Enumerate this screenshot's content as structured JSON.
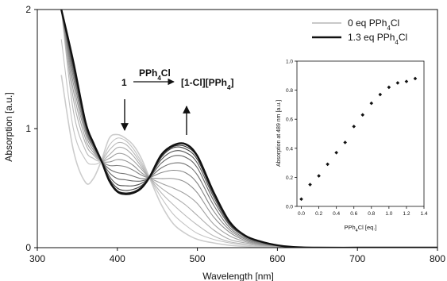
{
  "chart_data": [
    {
      "type": "line",
      "xlabel": "Wavelength [nm]",
      "ylabel": "Absorption [a.u.]",
      "xlim": [
        300,
        800
      ],
      "ylim": [
        0,
        2
      ],
      "xticks": [
        300,
        400,
        500,
        600,
        700,
        800
      ],
      "yticks": [
        0,
        1,
        2
      ],
      "grid": false,
      "legend_position": "top-right",
      "legend": [
        {
          "label_pre": "0 eq PPh",
          "label_sub": "4",
          "label_post": "Cl",
          "color": "#c8c8c8"
        },
        {
          "label_pre": "1.3 eq PPh",
          "label_sub": "4",
          "label_post": "Cl",
          "color": "#111111"
        }
      ],
      "annotations": {
        "reactant": "1",
        "reagent_pre": "PPh",
        "reagent_sub": "4",
        "reagent_post": "Cl",
        "product_pre": "[1-Cl][PPh",
        "product_sub": "4",
        "product_post": "]"
      },
      "isosbestic_points_nm": [
        378,
        440
      ],
      "series": [
        {
          "equivalents": 0.0,
          "color": "#cccccc",
          "x": [
            330,
            345,
            360,
            370,
            380,
            390,
            400,
            410,
            420,
            430,
            440,
            455,
            470,
            485,
            500,
            520,
            540,
            560,
            580,
            600,
            620,
            650,
            700,
            750,
            800
          ],
          "y": [
            1.45,
            0.82,
            0.55,
            0.58,
            0.73,
            0.92,
            0.95,
            0.92,
            0.86,
            0.75,
            0.59,
            0.36,
            0.2,
            0.12,
            0.07,
            0.04,
            0.02,
            0.01,
            0.005,
            0.0,
            0.0,
            0.0,
            0.0,
            0.0,
            0.0
          ]
        },
        {
          "equivalents": 0.1,
          "color": "#c3c3c3",
          "x": [
            330,
            345,
            360,
            370,
            380,
            390,
            400,
            410,
            420,
            430,
            440,
            455,
            470,
            485,
            500,
            520,
            540,
            560,
            580,
            600,
            620,
            650,
            700,
            750,
            800
          ],
          "y": [
            1.75,
            1.0,
            0.74,
            0.7,
            0.73,
            0.86,
            0.92,
            0.9,
            0.83,
            0.72,
            0.59,
            0.42,
            0.28,
            0.19,
            0.12,
            0.07,
            0.04,
            0.02,
            0.01,
            0.0,
            0.0,
            0.0,
            0.0,
            0.0,
            0.0
          ]
        },
        {
          "equivalents": 0.2,
          "color": "#b8b8b8",
          "x": [
            330,
            345,
            360,
            370,
            380,
            390,
            400,
            410,
            420,
            430,
            440,
            455,
            470,
            485,
            500,
            520,
            540,
            560,
            580,
            600,
            620,
            650,
            700,
            750,
            800
          ],
          "y": [
            2.0,
            1.15,
            0.82,
            0.75,
            0.73,
            0.82,
            0.88,
            0.87,
            0.8,
            0.7,
            0.59,
            0.46,
            0.36,
            0.27,
            0.19,
            0.1,
            0.05,
            0.03,
            0.015,
            0.005,
            0.0,
            0.0,
            0.0,
            0.0,
            0.0
          ]
        },
        {
          "equivalents": 0.3,
          "color": "#acacac",
          "x": [
            330,
            345,
            360,
            370,
            380,
            390,
            400,
            410,
            420,
            430,
            440,
            455,
            470,
            485,
            500,
            520,
            540,
            560,
            580,
            600,
            620,
            650,
            700,
            750,
            800
          ],
          "y": [
            2.0,
            1.25,
            0.88,
            0.78,
            0.73,
            0.78,
            0.84,
            0.83,
            0.77,
            0.68,
            0.59,
            0.5,
            0.43,
            0.36,
            0.27,
            0.15,
            0.07,
            0.04,
            0.02,
            0.01,
            0.0,
            0.0,
            0.0,
            0.0,
            0.0
          ]
        },
        {
          "equivalents": 0.4,
          "color": "#a0a0a0",
          "x": [
            330,
            345,
            360,
            370,
            380,
            390,
            400,
            410,
            420,
            430,
            440,
            455,
            470,
            485,
            500,
            520,
            540,
            560,
            580,
            600,
            620,
            650,
            700,
            750,
            800
          ],
          "y": [
            2.0,
            1.32,
            0.92,
            0.8,
            0.73,
            0.75,
            0.79,
            0.78,
            0.73,
            0.66,
            0.59,
            0.54,
            0.5,
            0.45,
            0.37,
            0.2,
            0.1,
            0.05,
            0.025,
            0.01,
            0.0,
            0.0,
            0.0,
            0.0,
            0.0
          ]
        },
        {
          "equivalents": 0.5,
          "color": "#929292",
          "x": [
            330,
            345,
            360,
            370,
            380,
            390,
            400,
            410,
            420,
            430,
            440,
            455,
            470,
            485,
            500,
            520,
            540,
            560,
            580,
            600,
            620,
            650,
            700,
            750,
            800
          ],
          "y": [
            2.0,
            1.38,
            0.96,
            0.82,
            0.73,
            0.72,
            0.74,
            0.73,
            0.69,
            0.63,
            0.59,
            0.58,
            0.58,
            0.55,
            0.46,
            0.26,
            0.13,
            0.06,
            0.03,
            0.015,
            0.0,
            0.0,
            0.0,
            0.0,
            0.0
          ]
        },
        {
          "equivalents": 0.6,
          "color": "#838383",
          "x": [
            330,
            345,
            360,
            370,
            380,
            390,
            400,
            410,
            420,
            430,
            440,
            455,
            470,
            485,
            500,
            520,
            540,
            560,
            580,
            600,
            620,
            650,
            700,
            750,
            800
          ],
          "y": [
            2.0,
            1.43,
            0.99,
            0.84,
            0.73,
            0.69,
            0.69,
            0.68,
            0.65,
            0.61,
            0.59,
            0.63,
            0.65,
            0.63,
            0.54,
            0.31,
            0.15,
            0.07,
            0.035,
            0.015,
            0.005,
            0.0,
            0.0,
            0.0,
            0.0
          ]
        },
        {
          "equivalents": 0.7,
          "color": "#737373",
          "x": [
            330,
            345,
            360,
            370,
            380,
            390,
            400,
            410,
            420,
            430,
            440,
            455,
            470,
            485,
            500,
            520,
            540,
            560,
            580,
            600,
            620,
            650,
            700,
            750,
            800
          ],
          "y": [
            2.0,
            1.47,
            1.01,
            0.85,
            0.73,
            0.66,
            0.63,
            0.62,
            0.6,
            0.58,
            0.59,
            0.67,
            0.71,
            0.7,
            0.61,
            0.36,
            0.17,
            0.08,
            0.04,
            0.02,
            0.005,
            0.0,
            0.0,
            0.0,
            0.0
          ]
        },
        {
          "equivalents": 0.8,
          "color": "#626262",
          "x": [
            330,
            345,
            360,
            370,
            380,
            390,
            400,
            410,
            420,
            430,
            440,
            455,
            470,
            485,
            500,
            520,
            540,
            560,
            580,
            600,
            620,
            650,
            700,
            750,
            800
          ],
          "y": [
            2.0,
            1.5,
            1.03,
            0.86,
            0.73,
            0.63,
            0.58,
            0.57,
            0.56,
            0.56,
            0.59,
            0.71,
            0.77,
            0.76,
            0.67,
            0.4,
            0.19,
            0.09,
            0.045,
            0.02,
            0.005,
            0.0,
            0.0,
            0.0,
            0.0
          ]
        },
        {
          "equivalents": 0.9,
          "color": "#505050",
          "x": [
            330,
            345,
            360,
            370,
            380,
            390,
            400,
            410,
            420,
            430,
            440,
            455,
            470,
            485,
            500,
            520,
            540,
            560,
            580,
            600,
            620,
            650,
            700,
            750,
            800
          ],
          "y": [
            2.0,
            1.52,
            1.04,
            0.87,
            0.73,
            0.6,
            0.53,
            0.52,
            0.52,
            0.54,
            0.59,
            0.74,
            0.81,
            0.8,
            0.71,
            0.43,
            0.2,
            0.1,
            0.05,
            0.02,
            0.005,
            0.0,
            0.0,
            0.0,
            0.0
          ]
        },
        {
          "equivalents": 1.0,
          "color": "#3e3e3e",
          "x": [
            330,
            345,
            360,
            370,
            380,
            390,
            400,
            410,
            420,
            430,
            440,
            455,
            470,
            485,
            500,
            520,
            540,
            560,
            580,
            600,
            620,
            650,
            700,
            750,
            800
          ],
          "y": [
            2.0,
            1.54,
            1.05,
            0.87,
            0.73,
            0.58,
            0.5,
            0.48,
            0.49,
            0.52,
            0.59,
            0.76,
            0.84,
            0.83,
            0.74,
            0.45,
            0.21,
            0.1,
            0.05,
            0.02,
            0.005,
            0.0,
            0.0,
            0.0,
            0.0
          ]
        },
        {
          "equivalents": 1.1,
          "color": "#2c2c2c",
          "x": [
            330,
            345,
            360,
            370,
            380,
            390,
            400,
            410,
            420,
            430,
            440,
            455,
            470,
            485,
            500,
            520,
            540,
            560,
            580,
            600,
            620,
            650,
            700,
            750,
            800
          ],
          "y": [
            2.0,
            1.55,
            1.06,
            0.88,
            0.73,
            0.57,
            0.48,
            0.46,
            0.47,
            0.51,
            0.59,
            0.77,
            0.85,
            0.85,
            0.76,
            0.46,
            0.22,
            0.1,
            0.05,
            0.02,
            0.005,
            0.0,
            0.0,
            0.0,
            0.0
          ]
        },
        {
          "equivalents": 1.3,
          "color": "#111111",
          "x": [
            330,
            345,
            360,
            370,
            380,
            390,
            400,
            410,
            420,
            430,
            440,
            455,
            470,
            485,
            500,
            520,
            540,
            560,
            580,
            600,
            620,
            650,
            700,
            750,
            800
          ],
          "y": [
            2.0,
            1.56,
            1.06,
            0.88,
            0.73,
            0.56,
            0.47,
            0.45,
            0.46,
            0.5,
            0.59,
            0.78,
            0.86,
            0.87,
            0.77,
            0.47,
            0.22,
            0.1,
            0.05,
            0.02,
            0.005,
            0.0,
            0.0,
            0.0,
            0.0
          ]
        }
      ]
    },
    {
      "type": "scatter",
      "xlabel_pre": "PPh",
      "xlabel_sub": "4",
      "xlabel_post": "Cl [eq.]",
      "ylabel": "Absorption at 489 nm [a.u.]",
      "xlim": [
        -0.05,
        1.4
      ],
      "ylim": [
        0.0,
        1.0
      ],
      "xticks": [
        "0.0",
        "0.2",
        "0.4",
        "0.6",
        "0.8",
        "1.0",
        "1.2",
        "1.4"
      ],
      "yticks": [
        "0.0",
        "0.2",
        "0.4",
        "0.6",
        "0.8",
        "1.0"
      ],
      "grid": false,
      "x": [
        0.0,
        0.1,
        0.2,
        0.3,
        0.4,
        0.5,
        0.6,
        0.7,
        0.8,
        0.9,
        1.0,
        1.1,
        1.2,
        1.3
      ],
      "y": [
        0.05,
        0.15,
        0.21,
        0.29,
        0.37,
        0.44,
        0.55,
        0.63,
        0.71,
        0.77,
        0.82,
        0.85,
        0.86,
        0.88
      ]
    }
  ]
}
